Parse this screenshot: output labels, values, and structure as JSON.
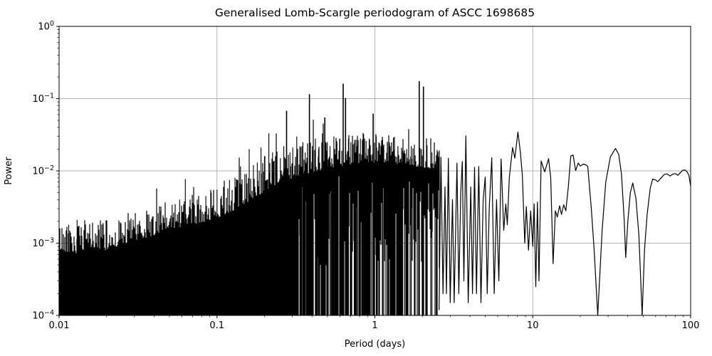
{
  "chart_data": {
    "type": "line",
    "title": "Generalised Lomb-Scargle periodogram of ASCC 1698685",
    "xlabel": "Period (days)",
    "ylabel": "Power",
    "xscale": "log",
    "yscale": "log",
    "xlim": [
      0.01,
      100
    ],
    "ylim": [
      0.0001,
      1
    ],
    "grid": true,
    "grid_color": "#b0b0b0",
    "line_color": "#000000",
    "background_color": "#ffffff",
    "legend": "none",
    "x_ticks": [
      {
        "value": 0.01,
        "label": "0.01"
      },
      {
        "value": 0.1,
        "label": "0.1"
      },
      {
        "value": 1,
        "label": "1"
      },
      {
        "value": 10,
        "label": "10"
      },
      {
        "value": 100,
        "label": "100"
      }
    ],
    "y_ticks": [
      {
        "value": 1,
        "base": "10",
        "exp": "0"
      },
      {
        "value": 0.1,
        "base": "10",
        "exp": "−1"
      },
      {
        "value": 0.01,
        "base": "10",
        "exp": "−2"
      },
      {
        "value": 0.001,
        "base": "10",
        "exp": "−3"
      },
      {
        "value": 0.0001,
        "base": "10",
        "exp": "−4"
      }
    ],
    "dense_region": {
      "comment": "unresolved spike forest: filled columns from floor up to jittered envelope; gaps open up beyond gap_onset_period",
      "x_range": [
        0.01,
        2.55
      ],
      "floor": 0.0001,
      "gap_onset_period": 0.33,
      "seed": 42,
      "envelope": [
        [
          0.01,
          0.001
        ],
        [
          0.013,
          0.0009
        ],
        [
          0.016,
          0.0011
        ],
        [
          0.02,
          0.001
        ],
        [
          0.025,
          0.0012
        ],
        [
          0.032,
          0.0014
        ],
        [
          0.04,
          0.0016
        ],
        [
          0.05,
          0.0019
        ],
        [
          0.065,
          0.0022
        ],
        [
          0.08,
          0.0024
        ],
        [
          0.1,
          0.0028
        ],
        [
          0.125,
          0.0035
        ],
        [
          0.16,
          0.0048
        ],
        [
          0.2,
          0.0065
        ],
        [
          0.25,
          0.0085
        ],
        [
          0.32,
          0.0105
        ],
        [
          0.4,
          0.012
        ],
        [
          0.5,
          0.0135
        ],
        [
          0.65,
          0.015
        ],
        [
          0.8,
          0.016
        ],
        [
          1.0,
          0.0165
        ],
        [
          1.3,
          0.016
        ],
        [
          1.6,
          0.015
        ],
        [
          2.0,
          0.014
        ],
        [
          2.55,
          0.013
        ]
      ]
    },
    "peaks": [
      [
        0.0115,
        0.0018
      ],
      [
        0.013,
        0.0021
      ],
      [
        0.019,
        0.0019
      ],
      [
        0.028,
        0.0019
      ],
      [
        0.037,
        0.0025
      ],
      [
        0.044,
        0.0028
      ],
      [
        0.052,
        0.0034
      ],
      [
        0.058,
        0.004
      ],
      [
        0.063,
        0.0077
      ],
      [
        0.075,
        0.004
      ],
      [
        0.085,
        0.0045
      ],
      [
        0.092,
        0.005
      ],
      [
        0.1,
        0.0055
      ],
      [
        0.11,
        0.006
      ],
      [
        0.12,
        0.0075
      ],
      [
        0.13,
        0.008
      ],
      [
        0.141,
        0.0115
      ],
      [
        0.15,
        0.009
      ],
      [
        0.16,
        0.02
      ],
      [
        0.17,
        0.012
      ],
      [
        0.18,
        0.013
      ],
      [
        0.19,
        0.021
      ],
      [
        0.2,
        0.016
      ],
      [
        0.213,
        0.033
      ],
      [
        0.225,
        0.018
      ],
      [
        0.24,
        0.0185
      ],
      [
        0.252,
        0.015
      ],
      [
        0.265,
        0.022
      ],
      [
        0.276,
        0.068
      ],
      [
        0.29,
        0.018
      ],
      [
        0.302,
        0.021
      ],
      [
        0.32,
        0.03
      ],
      [
        0.335,
        0.022
      ],
      [
        0.35,
        0.025
      ],
      [
        0.362,
        0.018
      ],
      [
        0.385,
        0.115
      ],
      [
        0.402,
        0.022
      ],
      [
        0.42,
        0.028
      ],
      [
        0.44,
        0.02
      ],
      [
        0.465,
        0.033
      ],
      [
        0.482,
        0.055
      ],
      [
        0.5,
        0.025
      ],
      [
        0.52,
        0.022
      ],
      [
        0.55,
        0.03
      ],
      [
        0.575,
        0.024
      ],
      [
        0.6,
        0.028
      ],
      [
        0.63,
        0.161
      ],
      [
        0.652,
        0.102
      ],
      [
        0.68,
        0.028
      ],
      [
        0.705,
        0.025
      ],
      [
        0.74,
        0.024
      ],
      [
        0.77,
        0.022
      ],
      [
        0.81,
        0.028
      ],
      [
        0.85,
        0.032
      ],
      [
        0.88,
        0.026
      ],
      [
        0.92,
        0.028
      ],
      [
        0.975,
        0.062
      ],
      [
        1.02,
        0.03
      ],
      [
        1.06,
        0.025
      ],
      [
        1.12,
        0.027
      ],
      [
        1.2,
        0.024
      ],
      [
        1.25,
        0.022
      ],
      [
        1.31,
        0.029
      ],
      [
        1.4,
        0.022
      ],
      [
        1.5,
        0.019
      ],
      [
        1.59,
        0.02
      ],
      [
        1.7,
        0.022
      ],
      [
        1.78,
        0.023
      ],
      [
        1.91,
        0.174
      ],
      [
        2.03,
        0.147
      ],
      [
        2.14,
        0.0225
      ],
      [
        2.3,
        0.018
      ],
      [
        2.45,
        0.0165
      ]
    ],
    "resolved_curve": [
      [
        2.55,
        0.00012
      ],
      [
        2.62,
        0.0155
      ],
      [
        2.7,
        0.0002
      ],
      [
        2.78,
        0.006
      ],
      [
        2.84,
        0.0002
      ],
      [
        2.92,
        0.015
      ],
      [
        3.0,
        0.00015
      ],
      [
        3.1,
        0.004
      ],
      [
        3.18,
        0.00015
      ],
      [
        3.31,
        0.0128
      ],
      [
        3.4,
        0.0002
      ],
      [
        3.5,
        0.005
      ],
      [
        3.58,
        0.0135
      ],
      [
        3.66,
        0.0003
      ],
      [
        3.77,
        0.0305
      ],
      [
        3.9,
        0.00015
      ],
      [
        4.05,
        0.006
      ],
      [
        4.15,
        0.0002
      ],
      [
        4.28,
        0.0112
      ],
      [
        4.4,
        0.0002
      ],
      [
        4.55,
        0.0115
      ],
      [
        4.7,
        0.00015
      ],
      [
        4.85,
        0.004
      ],
      [
        5.0,
        0.0082
      ],
      [
        5.15,
        0.0002
      ],
      [
        5.3,
        0.003
      ],
      [
        5.5,
        0.0152
      ],
      [
        5.7,
        0.0002
      ],
      [
        5.9,
        0.004
      ],
      [
        6.1,
        0.0003
      ],
      [
        6.3,
        0.0146
      ],
      [
        6.55,
        0.0015
      ],
      [
        6.75,
        0.0035
      ],
      [
        6.9,
        0.0018
      ],
      [
        7.1,
        0.008
      ],
      [
        7.45,
        0.021
      ],
      [
        7.7,
        0.015
      ],
      [
        8.05,
        0.0345
      ],
      [
        8.35,
        0.018
      ],
      [
        8.6,
        0.0085
      ],
      [
        8.9,
        0.001
      ],
      [
        9.1,
        0.0032
      ],
      [
        9.4,
        0.0008
      ],
      [
        9.7,
        0.0028
      ],
      [
        10.0,
        0.0009
      ],
      [
        10.2,
        0.0035
      ],
      [
        10.45,
        0.00025
      ],
      [
        10.7,
        0.0037
      ],
      [
        10.95,
        0.0003
      ],
      [
        11.3,
        0.0137
      ],
      [
        11.9,
        0.0097
      ],
      [
        12.6,
        0.0147
      ],
      [
        13.0,
        0.008
      ],
      [
        13.45,
        0.00052
      ],
      [
        13.9,
        0.0028
      ],
      [
        14.3,
        0.0023
      ],
      [
        14.8,
        0.0033
      ],
      [
        15.2,
        0.0025
      ],
      [
        15.7,
        0.0034
      ],
      [
        16.2,
        0.0028
      ],
      [
        16.8,
        0.006
      ],
      [
        17.4,
        0.016
      ],
      [
        18.0,
        0.0166
      ],
      [
        18.7,
        0.0101
      ],
      [
        19.4,
        0.0128
      ],
      [
        20.0,
        0.0117
      ],
      [
        20.9,
        0.0124
      ],
      [
        21.9,
        0.012
      ],
      [
        22.3,
        0.0115
      ],
      [
        23.5,
        0.003
      ],
      [
        24.5,
        0.0008
      ],
      [
        25.8,
        0.0001
      ],
      [
        27.5,
        0.0015
      ],
      [
        29.0,
        0.007
      ],
      [
        31.0,
        0.0155
      ],
      [
        33.4,
        0.0205
      ],
      [
        35.0,
        0.017
      ],
      [
        36.5,
        0.009
      ],
      [
        38.0,
        0.002
      ],
      [
        38.8,
        0.00063
      ],
      [
        40.0,
        0.002
      ],
      [
        41.5,
        0.005
      ],
      [
        43.0,
        0.0068
      ],
      [
        45.0,
        0.0042
      ],
      [
        47.0,
        0.0013
      ],
      [
        49.3,
        0.0001
      ],
      [
        51.0,
        0.0008
      ],
      [
        53.0,
        0.0025
      ],
      [
        55.5,
        0.0058
      ],
      [
        57.5,
        0.0077
      ],
      [
        60.0,
        0.0075
      ],
      [
        62.0,
        0.0071
      ],
      [
        65.0,
        0.008
      ],
      [
        68.0,
        0.0089
      ],
      [
        71.0,
        0.0091
      ],
      [
        74.0,
        0.0085
      ],
      [
        77.0,
        0.009
      ],
      [
        80.0,
        0.0092
      ],
      [
        83.0,
        0.0087
      ],
      [
        86.0,
        0.0094
      ],
      [
        89.0,
        0.0102
      ],
      [
        92.0,
        0.0103
      ],
      [
        95.0,
        0.0097
      ],
      [
        97.5,
        0.0086
      ],
      [
        100.0,
        0.0062
      ]
    ]
  }
}
